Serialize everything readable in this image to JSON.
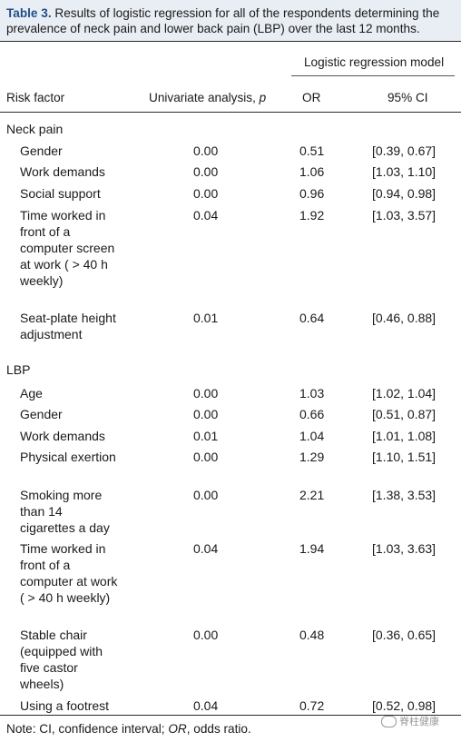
{
  "caption": {
    "table_label": "Table 3.",
    "text": "Results of logistic regression for all of the respondents determining the prevalence of neck pain and lower back pain (LBP) over the last 12 months."
  },
  "header": {
    "group_label": "Logistic regression model",
    "risk_factor": "Risk factor",
    "univariate": "Univariate analysis,",
    "univariate_p": "p",
    "or": "OR",
    "ci": "95% CI"
  },
  "sections": [
    {
      "name": "Neck pain",
      "rows": [
        {
          "factor": "Gender",
          "univariate": "0.00",
          "or": "0.51",
          "ci": "[0.39, 0.67]"
        },
        {
          "factor": "Work demands",
          "univariate": "0.00",
          "or": "1.06",
          "ci": "[1.03, 1.10]"
        },
        {
          "factor": "Social support",
          "univariate": "0.00",
          "or": "0.96",
          "ci": "[0.94, 0.98]"
        },
        {
          "factor": "Time worked in front of a computer screen at work ( > 40 h weekly)",
          "univariate": "0.04",
          "or": "1.92",
          "ci": "[1.03, 3.57]"
        },
        {
          "factor": "Seat-plate height adjustment",
          "univariate": "0.01",
          "or": "0.64",
          "ci": "[0.46, 0.88]"
        }
      ]
    },
    {
      "name": "LBP",
      "rows": [
        {
          "factor": "Age",
          "univariate": "0.00",
          "or": "1.03",
          "ci": "[1.02, 1.04]"
        },
        {
          "factor": "Gender",
          "univariate": "0.00",
          "or": "0.66",
          "ci": "[0.51, 0.87]"
        },
        {
          "factor": "Work demands",
          "univariate": "0.01",
          "or": "1.04",
          "ci": "[1.01, 1.08]"
        },
        {
          "factor": "Physical exertion",
          "univariate": "0.00",
          "or": "1.29",
          "ci": "[1.10, 1.51]"
        },
        {
          "factor": "Smoking more than 14 cigarettes a day",
          "univariate": "0.00",
          "or": "2.21",
          "ci": "[1.38, 3.53]"
        },
        {
          "factor": "Time worked in front of a computer at work ( > 40 h weekly)",
          "univariate": "0.04",
          "or": "1.94",
          "ci": "[1.03, 3.63]"
        },
        {
          "factor": "Stable chair (equipped with five castor wheels)",
          "univariate": "0.00",
          "or": "0.48",
          "ci": "[0.36, 0.65]"
        },
        {
          "factor": "Using a footrest",
          "univariate": "0.04",
          "or": "0.72",
          "ci": "[0.52, 0.98]"
        }
      ]
    }
  ],
  "note": {
    "prefix": "Note: CI, confidence interval;",
    "or_abbrev": "OR",
    "suffix": ", odds ratio."
  },
  "watermark": "脊柱健康"
}
